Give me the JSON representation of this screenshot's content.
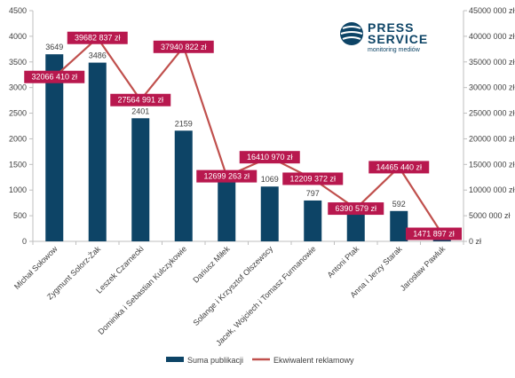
{
  "chart_data": {
    "type": "bar",
    "categories": [
      "Michał Sołowow",
      "Zygmunt Solorz-Żak",
      "Leszek Czarnecki",
      "Dominika i Sebastian Kulczykowie",
      "Dariusz Miłek",
      "Solange i Krzysztof Olszewscy",
      "Jacek, Wojciech i Tomasz Furmanowie",
      "Antoni Ptak",
      "Anna i Jerzy Starak",
      "Jarosław Pawluk"
    ],
    "series": [
      {
        "name": "Suma publikacji",
        "type": "bar",
        "axis": "left",
        "color": "#0d4466",
        "values": [
          3649,
          3486,
          2401,
          2159,
          1167,
          1069,
          797,
          683,
          592,
          143
        ],
        "labels": [
          "3649",
          "3486",
          "2401",
          "2159",
          "1167",
          "1069",
          "797",
          "",
          "592",
          ""
        ]
      },
      {
        "name": "Ekwiwalent reklamowy",
        "type": "line",
        "axis": "right",
        "color": "#c0504d",
        "values": [
          32066410,
          39682837,
          27564991,
          37940822,
          12699263,
          16410970,
          12209372,
          6390579,
          14465440,
          1471897
        ],
        "labels": [
          "32066 410 zł",
          "39682 837 zł",
          "27564 991 zł",
          "37940 822 zł",
          "12699 263 zł",
          "16410 970 zł",
          "12209 372 zł",
          "6390 579 zł",
          "14465 440 zł",
          "1471 897 zł"
        ],
        "label_color": "#b8184e"
      }
    ],
    "y_left": {
      "min": 0,
      "max": 4500,
      "ticks": [
        "0",
        "500",
        "1000",
        "1500",
        "2000",
        "2500",
        "3000",
        "3500",
        "4000",
        "4500"
      ]
    },
    "y_right": {
      "min": 0,
      "max": 45000000,
      "ticks": [
        "0 zł",
        "5000 000 zł",
        "10000 000 zł",
        "15000 000 zł",
        "20000 000 zł",
        "25000 000 zł",
        "30000 000 zł",
        "35000 000 zł",
        "40000 000 zł",
        "45000 000 zł"
      ]
    },
    "legend_position": "bottom",
    "grid": false
  },
  "logo": {
    "line1": "PRESS",
    "line2": "SERVICE",
    "tagline": "monitoring mediów"
  },
  "colors": {
    "bar": "#0d4466",
    "line": "#c0504d",
    "label_box": "#b8184e",
    "axis": "#bfbfbf",
    "text": "#404040"
  }
}
